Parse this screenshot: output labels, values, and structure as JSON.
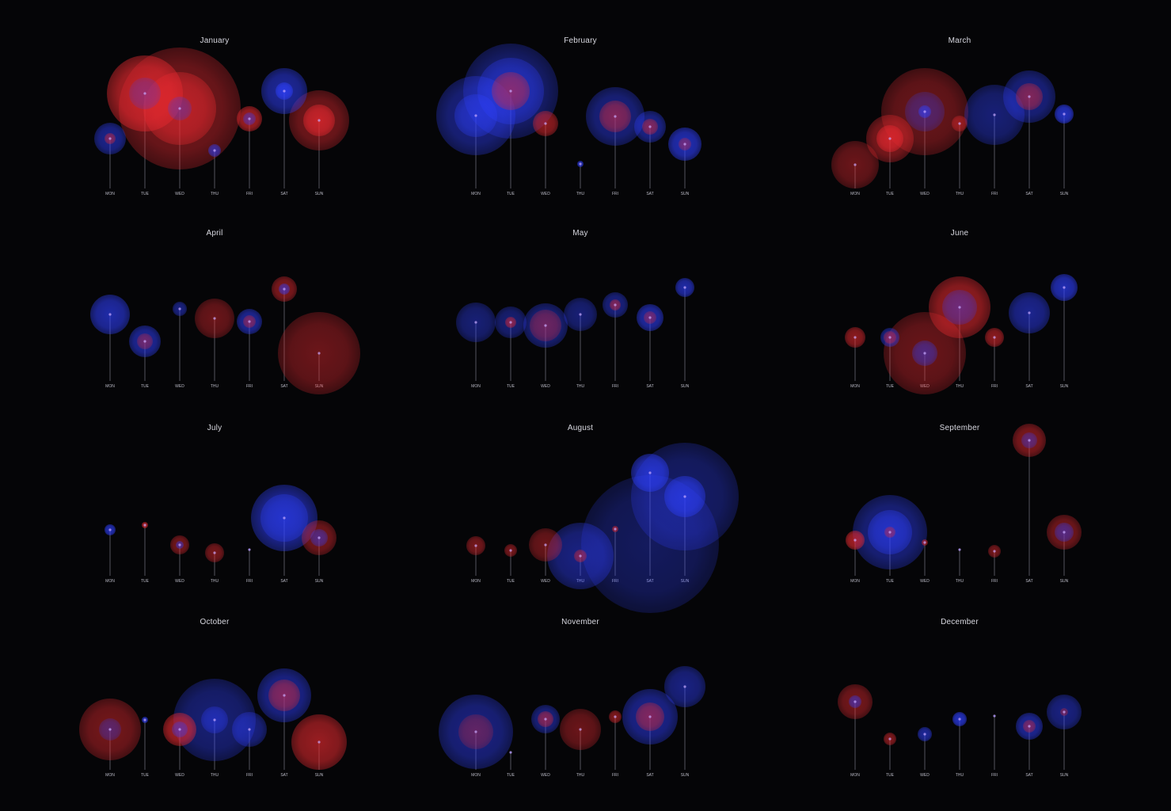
{
  "colors": {
    "background": "#050507",
    "red": "#e8252a",
    "blue": "#2a3cff",
    "stem": "#9a9aa8",
    "label": "#b9b9c4"
  },
  "chart_data": {
    "type": "scatter",
    "days": [
      "MON",
      "TUE",
      "WED",
      "THU",
      "FRI",
      "SAT",
      "SUN"
    ],
    "months": [
      {
        "title": "January",
        "bubbles": [
          {
            "day": "MON",
            "h": 63,
            "r": 20,
            "c": "blue",
            "a": 0.55
          },
          {
            "day": "MON",
            "h": 63,
            "r": 7,
            "c": "red",
            "a": 0.5
          },
          {
            "day": "TUE",
            "h": 120,
            "r": 48,
            "c": "red",
            "a": 0.75
          },
          {
            "day": "TUE",
            "h": 120,
            "r": 20,
            "c": "blue",
            "a": 0.3
          },
          {
            "day": "WED",
            "h": 101,
            "r": 77,
            "c": "red",
            "a": 0.5
          },
          {
            "day": "WED",
            "h": 101,
            "r": 46,
            "c": "red",
            "a": 0.6
          },
          {
            "day": "WED",
            "h": 101,
            "r": 15,
            "c": "blue",
            "a": 0.35
          },
          {
            "day": "THU",
            "h": 48,
            "r": 8,
            "c": "blue",
            "a": 0.6
          },
          {
            "day": "FRI",
            "h": 88,
            "r": 16,
            "c": "red",
            "a": 0.7
          },
          {
            "day": "FRI",
            "h": 88,
            "r": 8,
            "c": "blue",
            "a": 0.45
          },
          {
            "day": "SAT",
            "h": 123,
            "r": 29,
            "c": "blue",
            "a": 0.6
          },
          {
            "day": "SAT",
            "h": 123,
            "r": 11,
            "c": "blue",
            "a": 0.7
          },
          {
            "day": "SUN",
            "h": 86,
            "r": 38,
            "c": "red",
            "a": 0.5
          },
          {
            "day": "SUN",
            "h": 86,
            "r": 20,
            "c": "red",
            "a": 0.7
          }
        ]
      },
      {
        "title": "February",
        "bubbles": [
          {
            "day": "MON",
            "h": 92,
            "r": 50,
            "c": "blue",
            "a": 0.5
          },
          {
            "day": "MON",
            "h": 92,
            "r": 27,
            "c": "blue",
            "a": 0.5
          },
          {
            "day": "TUE",
            "h": 123,
            "r": 60,
            "c": "blue",
            "a": 0.45
          },
          {
            "day": "TUE",
            "h": 123,
            "r": 42,
            "c": "blue",
            "a": 0.5
          },
          {
            "day": "TUE",
            "h": 123,
            "r": 24,
            "c": "red",
            "a": 0.5
          },
          {
            "day": "WED",
            "h": 82,
            "r": 16,
            "c": "red",
            "a": 0.6
          },
          {
            "day": "THU",
            "h": 31,
            "r": 4,
            "c": "blue",
            "a": 0.7
          },
          {
            "day": "FRI",
            "h": 91,
            "r": 37,
            "c": "blue",
            "a": 0.5
          },
          {
            "day": "FRI",
            "h": 91,
            "r": 20,
            "c": "red",
            "a": 0.5
          },
          {
            "day": "SAT",
            "h": 78,
            "r": 20,
            "c": "blue",
            "a": 0.55
          },
          {
            "day": "SAT",
            "h": 78,
            "r": 10,
            "c": "red",
            "a": 0.5
          },
          {
            "day": "SUN",
            "h": 56,
            "r": 21,
            "c": "blue",
            "a": 0.7
          },
          {
            "day": "SUN",
            "h": 56,
            "r": 8,
            "c": "red",
            "a": 0.4
          }
        ]
      },
      {
        "title": "March",
        "bubbles": [
          {
            "day": "MON",
            "h": 30,
            "r": 30,
            "c": "red",
            "a": 0.45
          },
          {
            "day": "TUE",
            "h": 63,
            "r": 30,
            "c": "red",
            "a": 0.55
          },
          {
            "day": "TUE",
            "h": 63,
            "r": 17,
            "c": "red",
            "a": 0.7
          },
          {
            "day": "WED",
            "h": 97,
            "r": 55,
            "c": "red",
            "a": 0.45
          },
          {
            "day": "WED",
            "h": 97,
            "r": 25,
            "c": "blue",
            "a": 0.35
          },
          {
            "day": "WED",
            "h": 97,
            "r": 8,
            "c": "blue",
            "a": 0.6
          },
          {
            "day": "THU",
            "h": 82,
            "r": 10,
            "c": "red",
            "a": 0.5
          },
          {
            "day": "FRI",
            "h": 93,
            "r": 38,
            "c": "blue",
            "a": 0.45
          },
          {
            "day": "SAT",
            "h": 116,
            "r": 33,
            "c": "blue",
            "a": 0.5
          },
          {
            "day": "SAT",
            "h": 116,
            "r": 17,
            "c": "red",
            "a": 0.5
          },
          {
            "day": "SUN",
            "h": 94,
            "r": 12,
            "c": "blue",
            "a": 0.75
          }
        ]
      },
      {
        "title": "April",
        "bubbles": [
          {
            "day": "MON",
            "h": 84,
            "r": 25,
            "c": "blue",
            "a": 0.65
          },
          {
            "day": "TUE",
            "h": 50,
            "r": 20,
            "c": "blue",
            "a": 0.6
          },
          {
            "day": "TUE",
            "h": 50,
            "r": 10,
            "c": "red",
            "a": 0.4
          },
          {
            "day": "WED",
            "h": 91,
            "r": 9,
            "c": "blue",
            "a": 0.5
          },
          {
            "day": "THU",
            "h": 79,
            "r": 25,
            "c": "red",
            "a": 0.45
          },
          {
            "day": "FRI",
            "h": 75,
            "r": 16,
            "c": "blue",
            "a": 0.6
          },
          {
            "day": "FRI",
            "h": 75,
            "r": 8,
            "c": "red",
            "a": 0.45
          },
          {
            "day": "SAT",
            "h": 116,
            "r": 16,
            "c": "red",
            "a": 0.55
          },
          {
            "day": "SAT",
            "h": 116,
            "r": 7,
            "c": "blue",
            "a": 0.55
          },
          {
            "day": "SUN",
            "h": 35,
            "r": 52,
            "c": "red",
            "a": 0.45
          }
        ]
      },
      {
        "title": "May",
        "bubbles": [
          {
            "day": "MON",
            "h": 74,
            "r": 25,
            "c": "blue",
            "a": 0.45
          },
          {
            "day": "TUE",
            "h": 74,
            "r": 20,
            "c": "blue",
            "a": 0.45
          },
          {
            "day": "TUE",
            "h": 74,
            "r": 7,
            "c": "red",
            "a": 0.55
          },
          {
            "day": "WED",
            "h": 70,
            "r": 28,
            "c": "blue",
            "a": 0.5
          },
          {
            "day": "WED",
            "h": 70,
            "r": 20,
            "c": "red",
            "a": 0.4
          },
          {
            "day": "THU",
            "h": 84,
            "r": 21,
            "c": "blue",
            "a": 0.45
          },
          {
            "day": "FRI",
            "h": 96,
            "r": 16,
            "c": "blue",
            "a": 0.5
          },
          {
            "day": "FRI",
            "h": 96,
            "r": 7,
            "c": "red",
            "a": 0.5
          },
          {
            "day": "SAT",
            "h": 80,
            "r": 17,
            "c": "blue",
            "a": 0.65
          },
          {
            "day": "SAT",
            "h": 80,
            "r": 8,
            "c": "red",
            "a": 0.4
          },
          {
            "day": "SUN",
            "h": 118,
            "r": 12,
            "c": "blue",
            "a": 0.65
          }
        ]
      },
      {
        "title": "June",
        "bubbles": [
          {
            "day": "MON",
            "h": 55,
            "r": 13,
            "c": "red",
            "a": 0.6
          },
          {
            "day": "TUE",
            "h": 55,
            "r": 12,
            "c": "blue",
            "a": 0.55
          },
          {
            "day": "TUE",
            "h": 55,
            "r": 8,
            "c": "red",
            "a": 0.45
          },
          {
            "day": "WED",
            "h": 35,
            "r": 52,
            "c": "red",
            "a": 0.45
          },
          {
            "day": "WED",
            "h": 35,
            "r": 16,
            "c": "blue",
            "a": 0.45
          },
          {
            "day": "THU",
            "h": 93,
            "r": 39,
            "c": "red",
            "a": 0.65
          },
          {
            "day": "THU",
            "h": 93,
            "r": 22,
            "c": "blue",
            "a": 0.4
          },
          {
            "day": "FRI",
            "h": 55,
            "r": 12,
            "c": "red",
            "a": 0.6
          },
          {
            "day": "SAT",
            "h": 86,
            "r": 26,
            "c": "blue",
            "a": 0.55
          },
          {
            "day": "SUN",
            "h": 118,
            "r": 17,
            "c": "blue",
            "a": 0.7
          }
        ]
      },
      {
        "title": "July",
        "bubbles": [
          {
            "day": "MON",
            "h": 58,
            "r": 7,
            "c": "blue",
            "a": 0.7
          },
          {
            "day": "TUE",
            "h": 64,
            "r": 4,
            "c": "red",
            "a": 0.7
          },
          {
            "day": "WED",
            "h": 39,
            "r": 12,
            "c": "red",
            "a": 0.5
          },
          {
            "day": "WED",
            "h": 39,
            "r": 5,
            "c": "blue",
            "a": 0.5
          },
          {
            "day": "THU",
            "h": 29,
            "r": 12,
            "c": "red",
            "a": 0.5
          },
          {
            "day": "FRI",
            "h": 33,
            "r": 1,
            "c": "blue",
            "a": 0.6
          },
          {
            "day": "SAT",
            "h": 73,
            "r": 42,
            "c": "blue",
            "a": 0.6
          },
          {
            "day": "SAT",
            "h": 73,
            "r": 30,
            "c": "blue",
            "a": 0.5
          },
          {
            "day": "SUN",
            "h": 48,
            "r": 22,
            "c": "red",
            "a": 0.5
          },
          {
            "day": "SUN",
            "h": 48,
            "r": 11,
            "c": "blue",
            "a": 0.45
          }
        ]
      },
      {
        "title": "August",
        "bubbles": [
          {
            "day": "MON",
            "h": 38,
            "r": 12,
            "c": "red",
            "a": 0.5
          },
          {
            "day": "TUE",
            "h": 32,
            "r": 8,
            "c": "red",
            "a": 0.5
          },
          {
            "day": "WED",
            "h": 39,
            "r": 21,
            "c": "red",
            "a": 0.45
          },
          {
            "day": "THU",
            "h": 25,
            "r": 42,
            "c": "blue",
            "a": 0.5
          },
          {
            "day": "THU",
            "h": 25,
            "r": 8,
            "c": "red",
            "a": 0.5
          },
          {
            "day": "FRI",
            "h": 59,
            "r": 4,
            "c": "red",
            "a": 0.6
          },
          {
            "day": "SAT",
            "h": 40,
            "r": 87,
            "c": "blue",
            "a": 0.35
          },
          {
            "day": "SAT",
            "h": 130,
            "r": 24,
            "c": "blue",
            "a": 0.7
          },
          {
            "day": "SUN",
            "h": 100,
            "r": 68,
            "c": "blue",
            "a": 0.4
          },
          {
            "day": "SUN",
            "h": 100,
            "r": 26,
            "c": "blue",
            "a": 0.65
          }
        ]
      },
      {
        "title": "September",
        "bubbles": [
          {
            "day": "MON",
            "h": 45,
            "r": 12,
            "c": "red",
            "a": 0.7
          },
          {
            "day": "TUE",
            "h": 55,
            "r": 47,
            "c": "blue",
            "a": 0.5
          },
          {
            "day": "TUE",
            "h": 55,
            "r": 28,
            "c": "blue",
            "a": 0.55
          },
          {
            "day": "TUE",
            "h": 55,
            "r": 7,
            "c": "red",
            "a": 0.45
          },
          {
            "day": "WED",
            "h": 42,
            "r": 4,
            "c": "red",
            "a": 0.6
          },
          {
            "day": "THU",
            "h": 33,
            "r": 1,
            "c": "blue",
            "a": 0.5
          },
          {
            "day": "FRI",
            "h": 31,
            "r": 8,
            "c": "red",
            "a": 0.5
          },
          {
            "day": "SAT",
            "h": 171,
            "r": 21,
            "c": "red",
            "a": 0.55
          },
          {
            "day": "SAT",
            "h": 171,
            "r": 10,
            "c": "blue",
            "a": 0.4
          },
          {
            "day": "SUN",
            "h": 55,
            "r": 22,
            "c": "red",
            "a": 0.5
          },
          {
            "day": "SUN",
            "h": 55,
            "r": 12,
            "c": "blue",
            "a": 0.45
          }
        ]
      },
      {
        "title": "October",
        "bubbles": [
          {
            "day": "MON",
            "h": 51,
            "r": 39,
            "c": "red",
            "a": 0.5
          },
          {
            "day": "MON",
            "h": 51,
            "r": 14,
            "c": "blue",
            "a": 0.35
          },
          {
            "day": "TUE",
            "h": 63,
            "r": 4,
            "c": "blue",
            "a": 0.7
          },
          {
            "day": "WED",
            "h": 51,
            "r": 21,
            "c": "red",
            "a": 0.7
          },
          {
            "day": "WED",
            "h": 51,
            "r": 10,
            "c": "blue",
            "a": 0.45
          },
          {
            "day": "THU",
            "h": 63,
            "r": 52,
            "c": "blue",
            "a": 0.45
          },
          {
            "day": "THU",
            "h": 63,
            "r": 17,
            "c": "blue",
            "a": 0.45
          },
          {
            "day": "FRI",
            "h": 51,
            "r": 22,
            "c": "blue",
            "a": 0.5
          },
          {
            "day": "SAT",
            "h": 94,
            "r": 34,
            "c": "blue",
            "a": 0.55
          },
          {
            "day": "SAT",
            "h": 94,
            "r": 20,
            "c": "red",
            "a": 0.5
          },
          {
            "day": "SUN",
            "h": 35,
            "r": 35,
            "c": "red",
            "a": 0.65
          }
        ]
      },
      {
        "title": "November",
        "bubbles": [
          {
            "day": "MON",
            "h": 48,
            "r": 47,
            "c": "blue",
            "a": 0.5
          },
          {
            "day": "MON",
            "h": 48,
            "r": 22,
            "c": "red",
            "a": 0.35
          },
          {
            "day": "TUE",
            "h": 22,
            "r": 1,
            "c": "blue",
            "a": 0.5
          },
          {
            "day": "WED",
            "h": 64,
            "r": 18,
            "c": "blue",
            "a": 0.5
          },
          {
            "day": "WED",
            "h": 64,
            "r": 10,
            "c": "red",
            "a": 0.5
          },
          {
            "day": "THU",
            "h": 51,
            "r": 26,
            "c": "red",
            "a": 0.45
          },
          {
            "day": "FRI",
            "h": 67,
            "r": 8,
            "c": "red",
            "a": 0.55
          },
          {
            "day": "SAT",
            "h": 67,
            "r": 35,
            "c": "blue",
            "a": 0.55
          },
          {
            "day": "SAT",
            "h": 67,
            "r": 18,
            "c": "red",
            "a": 0.5
          },
          {
            "day": "SUN",
            "h": 105,
            "r": 26,
            "c": "blue",
            "a": 0.5
          }
        ]
      },
      {
        "title": "December",
        "bubbles": [
          {
            "day": "MON",
            "h": 86,
            "r": 22,
            "c": "red",
            "a": 0.5
          },
          {
            "day": "MON",
            "h": 86,
            "r": 8,
            "c": "blue",
            "a": 0.5
          },
          {
            "day": "TUE",
            "h": 39,
            "r": 8,
            "c": "red",
            "a": 0.55
          },
          {
            "day": "WED",
            "h": 45,
            "r": 9,
            "c": "blue",
            "a": 0.6
          },
          {
            "day": "THU",
            "h": 64,
            "r": 9,
            "c": "blue",
            "a": 0.75
          },
          {
            "day": "FRI",
            "h": 68,
            "r": 1,
            "c": "blue",
            "a": 0.5
          },
          {
            "day": "SAT",
            "h": 55,
            "r": 17,
            "c": "blue",
            "a": 0.6
          },
          {
            "day": "SAT",
            "h": 55,
            "r": 8,
            "c": "red",
            "a": 0.45
          },
          {
            "day": "SUN",
            "h": 73,
            "r": 22,
            "c": "blue",
            "a": 0.5
          },
          {
            "day": "SUN",
            "h": 73,
            "r": 5,
            "c": "red",
            "a": 0.4
          }
        ]
      }
    ]
  }
}
